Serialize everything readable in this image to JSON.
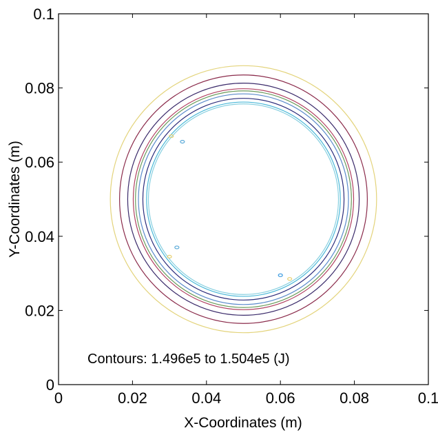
{
  "chart_data": {
    "type": "contour",
    "title": "",
    "xlabel": "X-Coordinates (m)",
    "ylabel": "Y-Coordinates (m)",
    "xlim": [
      0,
      0.1
    ],
    "ylim": [
      0,
      0.1
    ],
    "xticks": [
      "0",
      "0.02",
      "0.04",
      "0.06",
      "0.08",
      "0.1"
    ],
    "yticks": [
      "0",
      "0.02",
      "0.04",
      "0.06",
      "0.08",
      "0.1"
    ],
    "grid": false,
    "annotation": "Contours: 1.496e5 to 1.504e5 (J)",
    "center": [
      0.05,
      0.05
    ],
    "contours": [
      {
        "radius": 0.036,
        "color": "#e3d37a"
      },
      {
        "radius": 0.0335,
        "color": "#8a2a4a"
      },
      {
        "radius": 0.0313,
        "color": "#3a2a6a"
      },
      {
        "radius": 0.0298,
        "color": "#b04060"
      },
      {
        "radius": 0.0292,
        "color": "#6a9a5a"
      },
      {
        "radius": 0.0284,
        "color": "#5a8acb"
      },
      {
        "radius": 0.0272,
        "color": "#2a2a7a"
      },
      {
        "radius": 0.0262,
        "color": "#4ab8d8"
      },
      {
        "radius": 0.0257,
        "color": "#88d0e0"
      }
    ],
    "blobs": [
      {
        "x": 0.0305,
        "y": 0.067,
        "color": "#e8d070"
      },
      {
        "x": 0.0335,
        "y": 0.0655,
        "color": "#5aaad8"
      },
      {
        "x": 0.032,
        "y": 0.037,
        "color": "#5aaad8"
      },
      {
        "x": 0.03,
        "y": 0.0345,
        "color": "#e8d070"
      },
      {
        "x": 0.06,
        "y": 0.0295,
        "color": "#3a9ae0"
      },
      {
        "x": 0.0625,
        "y": 0.0285,
        "color": "#e8d070"
      }
    ]
  }
}
